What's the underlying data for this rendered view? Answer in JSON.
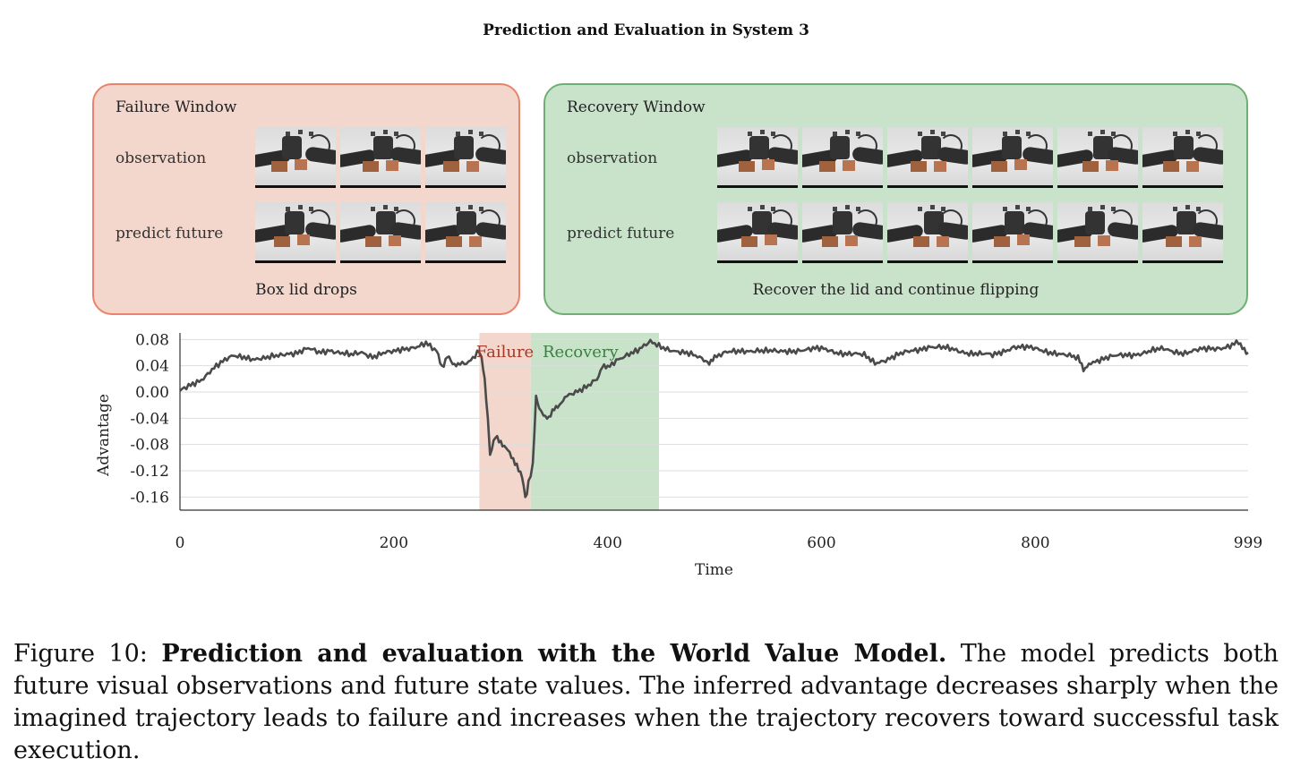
{
  "figure_title": "Prediction and Evaluation in System 3",
  "failure_panel": {
    "title": "Failure Window",
    "row1_label": "observation",
    "row2_label": "predict future",
    "caption": "Box lid drops",
    "frame_count": 3,
    "color": "#f3d6cc",
    "border_color": "#e9836d"
  },
  "recovery_panel": {
    "title": "Recovery Window",
    "row1_label": "observation",
    "row2_label": "predict future",
    "caption": "Recover the lid and continue flipping",
    "frame_count": 6,
    "color": "#c9e3cb",
    "border_color": "#6fae72"
  },
  "chart_data": {
    "type": "line",
    "xlabel": "Time",
    "ylabel": "Advantage",
    "xlim": [
      0,
      999
    ],
    "ylim": [
      -0.18,
      0.09
    ],
    "x_ticks": [
      0,
      200,
      400,
      600,
      800,
      999
    ],
    "y_ticks": [
      0.08,
      0.04,
      0.0,
      -0.04,
      -0.08,
      -0.12,
      -0.16
    ],
    "y_tick_labels": [
      "0.08",
      "0.04",
      "0.00",
      "-0.04",
      "-0.08",
      "-0.12",
      "-0.16"
    ],
    "grid": "horizontal",
    "line_color": "#4a4a4a",
    "regions": [
      {
        "label": "Failure",
        "start": 280,
        "end": 328,
        "color": "#f3d6cc",
        "label_color": "#a33a2a"
      },
      {
        "label": "Recovery",
        "start": 328,
        "end": 448,
        "color": "#c9e3cb",
        "label_color": "#3e7d43"
      }
    ],
    "series": [
      {
        "x": [
          0,
          10,
          20,
          30,
          40,
          50,
          60,
          70,
          80,
          90,
          100,
          110,
          120,
          130,
          140,
          150,
          160,
          170,
          180,
          190,
          200,
          210,
          220,
          230,
          240,
          245,
          250,
          255,
          260,
          270,
          280,
          282,
          285,
          288,
          290,
          295,
          300,
          305,
          310,
          315,
          320,
          323,
          326,
          330,
          333,
          336,
          340,
          345,
          350,
          355,
          360,
          370,
          380,
          390,
          395,
          400,
          410,
          420,
          430,
          440,
          448,
          460,
          470,
          480,
          490,
          495,
          500,
          510,
          520,
          540,
          560,
          580,
          600,
          620,
          640,
          650,
          660,
          680,
          700,
          720,
          740,
          760,
          780,
          800,
          820,
          840,
          845,
          850,
          860,
          880,
          900,
          920,
          940,
          960,
          980,
          990,
          999
        ],
        "y": [
          0.0,
          0.01,
          0.02,
          0.035,
          0.045,
          0.055,
          0.055,
          0.05,
          0.05,
          0.055,
          0.06,
          0.06,
          0.065,
          0.06,
          0.065,
          0.06,
          0.055,
          0.06,
          0.055,
          0.06,
          0.06,
          0.065,
          0.07,
          0.075,
          0.06,
          0.04,
          0.055,
          0.04,
          0.045,
          0.045,
          0.06,
          0.05,
          0.02,
          -0.04,
          -0.095,
          -0.07,
          -0.075,
          -0.085,
          -0.1,
          -0.11,
          -0.13,
          -0.16,
          -0.14,
          -0.11,
          -0.01,
          -0.02,
          -0.035,
          -0.04,
          -0.025,
          -0.02,
          -0.01,
          0.0,
          0.01,
          0.02,
          0.04,
          0.035,
          0.05,
          0.06,
          0.065,
          0.075,
          0.07,
          0.065,
          0.06,
          0.055,
          0.05,
          0.04,
          0.055,
          0.06,
          0.06,
          0.065,
          0.06,
          0.065,
          0.065,
          0.06,
          0.055,
          0.045,
          0.05,
          0.06,
          0.07,
          0.065,
          0.06,
          0.055,
          0.07,
          0.065,
          0.06,
          0.05,
          0.035,
          0.045,
          0.05,
          0.055,
          0.06,
          0.065,
          0.06,
          0.065,
          0.07,
          0.075,
          0.06
        ]
      }
    ]
  },
  "figure_caption": {
    "prefix": "Figure 10: ",
    "bold": "Prediction and evaluation with the World Value Model.",
    "rest": " The model predicts both future visual observations and future state values. The inferred advantage decreases sharply when the imagined trajectory leads to failure and increases when the trajectory recovers toward successful task execution."
  }
}
